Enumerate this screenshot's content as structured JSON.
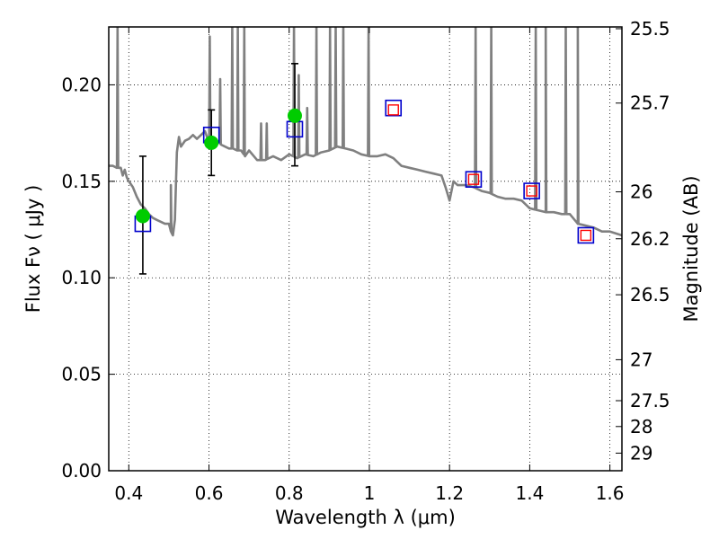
{
  "chart_data": {
    "type": "scatter",
    "xlabel": "Wavelength  λ (μm)",
    "ylabel": "Flux  Fν  ( μJy )",
    "ylabel_right": "Magnitude (AB)",
    "xlim": [
      0.35,
      1.63
    ],
    "ylim": [
      0.0,
      0.23
    ],
    "grid": true,
    "x_ticks": [
      {
        "value": 0.4,
        "label": "0.4"
      },
      {
        "value": 0.6,
        "label": "0.6"
      },
      {
        "value": 0.8,
        "label": "0.8"
      },
      {
        "value": 1.0,
        "label": "1"
      },
      {
        "value": 1.2,
        "label": "1.2"
      },
      {
        "value": 1.4,
        "label": "1.4"
      },
      {
        "value": 1.6,
        "label": "1.6"
      }
    ],
    "y_ticks": [
      {
        "value": 0.0,
        "label": "0.00"
      },
      {
        "value": 0.05,
        "label": "0.05"
      },
      {
        "value": 0.1,
        "label": "0.10"
      },
      {
        "value": 0.15,
        "label": "0.15"
      },
      {
        "value": 0.2,
        "label": "0.20"
      }
    ],
    "mag_ticks": [
      {
        "value": 25.5,
        "label": "25.5"
      },
      {
        "value": 25.7,
        "label": "25.7"
      },
      {
        "value": 26.0,
        "label": "26"
      },
      {
        "value": 26.2,
        "label": "26.2"
      },
      {
        "value": 26.5,
        "label": "26.5"
      },
      {
        "value": 27.0,
        "label": "27"
      },
      {
        "value": 27.5,
        "label": "27.5"
      },
      {
        "value": 28.0,
        "label": "28"
      },
      {
        "value": 29.0,
        "label": "29"
      }
    ],
    "series": [
      {
        "kind": "model-spectrum",
        "color": "#808080",
        "x": [
          0.35,
          0.36,
          0.37,
          0.38,
          0.385,
          0.39,
          0.395,
          0.4,
          0.41,
          0.42,
          0.43,
          0.44,
          0.45,
          0.46,
          0.47,
          0.48,
          0.49,
          0.5,
          0.505,
          0.51,
          0.515,
          0.52,
          0.525,
          0.53,
          0.54,
          0.55,
          0.56,
          0.57,
          0.58,
          0.59,
          0.6,
          0.61,
          0.62,
          0.63,
          0.64,
          0.65,
          0.66,
          0.67,
          0.68,
          0.69,
          0.7,
          0.72,
          0.74,
          0.76,
          0.78,
          0.8,
          0.82,
          0.84,
          0.86,
          0.88,
          0.9,
          0.92,
          0.94,
          0.96,
          0.98,
          1.0,
          1.02,
          1.04,
          1.06,
          1.08,
          1.1,
          1.12,
          1.14,
          1.16,
          1.18,
          1.19,
          1.2,
          1.21,
          1.22,
          1.24,
          1.26,
          1.28,
          1.3,
          1.32,
          1.34,
          1.36,
          1.38,
          1.4,
          1.42,
          1.44,
          1.46,
          1.48,
          1.5,
          1.52,
          1.54,
          1.56,
          1.58,
          1.6,
          1.63
        ],
        "y": [
          0.158,
          0.158,
          0.157,
          0.157,
          0.153,
          0.156,
          0.152,
          0.15,
          0.147,
          0.142,
          0.138,
          0.136,
          0.133,
          0.131,
          0.13,
          0.129,
          0.128,
          0.128,
          0.124,
          0.122,
          0.13,
          0.165,
          0.173,
          0.168,
          0.171,
          0.172,
          0.174,
          0.172,
          0.174,
          0.176,
          0.17,
          0.172,
          0.171,
          0.169,
          0.168,
          0.167,
          0.167,
          0.166,
          0.166,
          0.163,
          0.166,
          0.161,
          0.161,
          0.163,
          0.161,
          0.164,
          0.162,
          0.164,
          0.163,
          0.165,
          0.166,
          0.168,
          0.167,
          0.166,
          0.164,
          0.163,
          0.163,
          0.164,
          0.162,
          0.158,
          0.157,
          0.156,
          0.155,
          0.154,
          0.153,
          0.147,
          0.14,
          0.15,
          0.148,
          0.148,
          0.147,
          0.145,
          0.144,
          0.142,
          0.141,
          0.141,
          0.14,
          0.136,
          0.135,
          0.134,
          0.134,
          0.133,
          0.133,
          0.128,
          0.127,
          0.126,
          0.124,
          0.124,
          0.122
        ],
        "spikes": [
          {
            "x": 0.372,
            "y": 0.23
          },
          {
            "x": 0.505,
            "y": 0.148
          },
          {
            "x": 0.602,
            "y": 0.225
          },
          {
            "x": 0.628,
            "y": 0.203
          },
          {
            "x": 0.658,
            "y": 0.23
          },
          {
            "x": 0.672,
            "y": 0.23
          },
          {
            "x": 0.688,
            "y": 0.23
          },
          {
            "x": 0.73,
            "y": 0.18
          },
          {
            "x": 0.744,
            "y": 0.18
          },
          {
            "x": 0.812,
            "y": 0.23
          },
          {
            "x": 0.824,
            "y": 0.205
          },
          {
            "x": 0.845,
            "y": 0.188
          },
          {
            "x": 0.868,
            "y": 0.23
          },
          {
            "x": 0.902,
            "y": 0.23
          },
          {
            "x": 0.916,
            "y": 0.23
          },
          {
            "x": 0.935,
            "y": 0.23
          },
          {
            "x": 0.998,
            "y": 0.23
          },
          {
            "x": 1.265,
            "y": 0.23
          },
          {
            "x": 1.304,
            "y": 0.23
          },
          {
            "x": 1.415,
            "y": 0.23
          },
          {
            "x": 1.44,
            "y": 0.23
          },
          {
            "x": 1.49,
            "y": 0.23
          },
          {
            "x": 1.52,
            "y": 0.23
          }
        ]
      },
      {
        "kind": "observed",
        "marker": "circle",
        "color": "#00cc00",
        "points": [
          {
            "x": 0.435,
            "y": 0.132,
            "yerr_low": 0.102,
            "yerr_high": 0.163
          },
          {
            "x": 0.606,
            "y": 0.17,
            "yerr_low": 0.153,
            "yerr_high": 0.187
          },
          {
            "x": 0.814,
            "y": 0.184,
            "yerr_low": 0.158,
            "yerr_high": 0.211
          }
        ]
      },
      {
        "kind": "model-broadband",
        "marker": "square-open",
        "color": "#0000cc",
        "points": [
          {
            "x": 0.435,
            "y": 0.128
          },
          {
            "x": 0.606,
            "y": 0.174
          },
          {
            "x": 0.814,
            "y": 0.177
          },
          {
            "x": 1.06,
            "y": 0.188
          },
          {
            "x": 1.26,
            "y": 0.151
          },
          {
            "x": 1.405,
            "y": 0.145
          },
          {
            "x": 1.54,
            "y": 0.122
          }
        ]
      },
      {
        "kind": "model-small",
        "marker": "square-open",
        "color": "#ff0000",
        "points": [
          {
            "x": 1.06,
            "y": 0.187
          },
          {
            "x": 1.26,
            "y": 0.151
          },
          {
            "x": 1.405,
            "y": 0.145
          },
          {
            "x": 1.54,
            "y": 0.122
          }
        ]
      }
    ]
  }
}
